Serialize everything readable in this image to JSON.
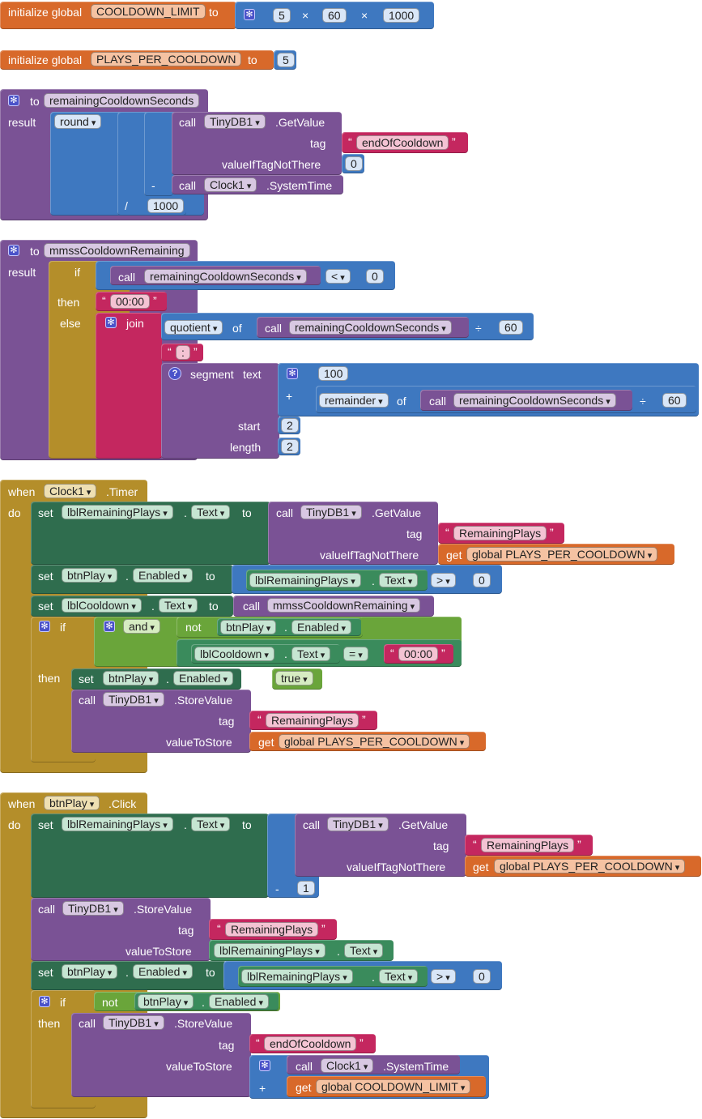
{
  "globals": [
    {
      "keyword": "initialize global",
      "name": "COOLDOWN_LIMIT",
      "to": "to",
      "mult": "×",
      "v1": "5",
      "v2": "60",
      "v3": "1000"
    },
    {
      "keyword": "initialize global",
      "name": "PLAYS_PER_COOLDOWN",
      "to": "to",
      "value": "5"
    }
  ],
  "proc1": {
    "to": "to",
    "name": "remainingCooldownSeconds",
    "result": "result",
    "round": "round",
    "call": "call",
    "db": "TinyDB1",
    "getvalue": ".GetValue",
    "tag": "tag",
    "tag_value": "endOfCooldown",
    "ifnot": "valueIfTagNotThere",
    "zero": "0",
    "minus": "-",
    "clock": "Clock1",
    "systime": ".SystemTime",
    "div": "/",
    "thousand": "1000"
  },
  "proc2": {
    "to": "to",
    "name": "mmssCooldownRemaining",
    "result": "result",
    "if": "if",
    "then": "then",
    "else": "else",
    "call": "call",
    "proc": "remainingCooldownSeconds",
    "lt": "<",
    "zero": "0",
    "zeros": "00:00",
    "join": "join",
    "quotient": "quotient",
    "of": "of",
    "divsym": "÷",
    "sixty": "60",
    "colon": ":",
    "segment": "segment",
    "text": "text",
    "hundred": "100",
    "plus": "+",
    "remainder": "remainder",
    "start": "start",
    "start_v": "2",
    "length": "length",
    "length_v": "2",
    "qmark": "?"
  },
  "event1": {
    "when": "when",
    "comp": "Clock1",
    "evt": ".Timer",
    "do": "do",
    "set": "set",
    "to": "to",
    "lbl_plays": "lblRemainingPlays",
    "text": "Text",
    "dot": ".",
    "call": "call",
    "db": "TinyDB1",
    "getvalue": ".GetValue",
    "tag": "tag",
    "rp": "RemainingPlays",
    "ifnot": "valueIfTagNotThere",
    "get": "get",
    "gvar": "global PLAYS_PER_COOLDOWN",
    "btn": "btnPlay",
    "enabled": "Enabled",
    "gt": ">",
    "zero": "0",
    "lbl_cd": "lblCooldown",
    "mmss": "mmssCooldownRemaining",
    "if": "if",
    "and": "and",
    "not": "not",
    "eq": "=",
    "zeros": "00:00",
    "then": "then",
    "true": "true",
    "store": ".StoreValue",
    "tostore": "valueToStore"
  },
  "event2": {
    "when": "when",
    "comp": "btnPlay",
    "evt": ".Click",
    "do": "do",
    "set": "set",
    "to": "to",
    "lbl_plays": "lblRemainingPlays",
    "text": "Text",
    "dot": ".",
    "call": "call",
    "db": "TinyDB1",
    "getvalue": ".GetValue",
    "tag": "tag",
    "rp": "RemainingPlays",
    "ifnot": "valueIfTagNotThere",
    "get": "get",
    "gvar": "global PLAYS_PER_COOLDOWN",
    "minus": "-",
    "one": "1",
    "store": ".StoreValue",
    "tostore": "valueToStore",
    "btn": "btnPlay",
    "enabled": "Enabled",
    "gt": ">",
    "zero": "0",
    "if": "if",
    "not": "not",
    "then": "then",
    "eoc": "endOfCooldown",
    "clock": "Clock1",
    "systime": ".SystemTime",
    "plus": "+",
    "gcd": "global COOLDOWN_LIMIT"
  }
}
